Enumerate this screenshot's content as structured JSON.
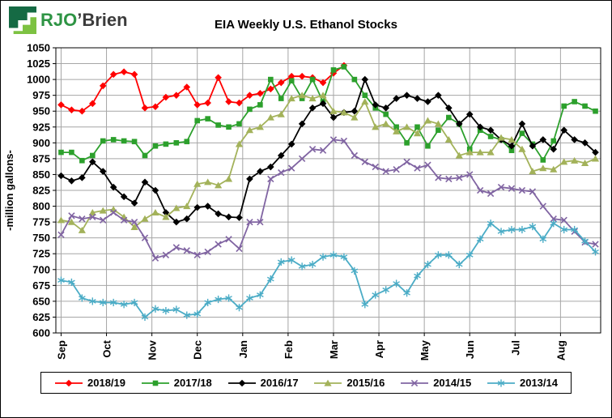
{
  "logo": {
    "text_green": "RJO",
    "text_dark": "’Brien"
  },
  "colors": {
    "logo_green": "#2E9444",
    "logo_dark": "#3B3B3B",
    "logo_icon_dark": "#156A44",
    "logo_icon_light": "#7DC242",
    "grid": "#A6A6A6"
  },
  "chart_data": {
    "type": "line",
    "title": "EIA Weekly U.S. Ethanol Stocks",
    "ylabel": "-million gallons-",
    "ylim": [
      600,
      1050
    ],
    "ytick_step": 25,
    "grid": true,
    "legend_position": "bottom",
    "x_tick_labels": [
      "Sep",
      "Oct",
      "Nov",
      "Dec",
      "Jan",
      "Feb",
      "Mar",
      "Apr",
      "May",
      "Jun",
      "Jul",
      "Aug"
    ],
    "weeks_per_year": 52,
    "series": [
      {
        "name": "2018/19",
        "color": "#FF0000",
        "marker": "diamond",
        "values": [
          960,
          952,
          950,
          962,
          990,
          1008,
          1012,
          1008,
          955,
          957,
          972,
          975,
          988,
          960,
          963,
          1003,
          965,
          963,
          975,
          978,
          985,
          995,
          1005,
          1005,
          1003,
          995,
          1010,
          1022
        ]
      },
      {
        "name": "2017/18",
        "color": "#2CA02C",
        "marker": "square",
        "values": [
          885,
          885,
          872,
          880,
          903,
          905,
          903,
          902,
          880,
          895,
          898,
          900,
          902,
          935,
          938,
          928,
          925,
          930,
          953,
          960,
          1000,
          970,
          998,
          970,
          1000,
          965,
          1015,
          1020,
          1000,
          975,
          955,
          945,
          925,
          900,
          925,
          895,
          920,
          940,
          930,
          890,
          920,
          910,
          905,
          888,
          915,
          898,
          873,
          903,
          958,
          965,
          958,
          950
        ]
      },
      {
        "name": "2016/17",
        "color": "#000000",
        "marker": "diamond",
        "values": [
          848,
          840,
          845,
          870,
          855,
          830,
          815,
          805,
          838,
          825,
          790,
          775,
          780,
          798,
          800,
          788,
          783,
          782,
          843,
          855,
          862,
          880,
          898,
          930,
          955,
          962,
          940,
          948,
          950,
          1000,
          960,
          955,
          970,
          975,
          970,
          965,
          975,
          955,
          930,
          945,
          925,
          920,
          905,
          895,
          930,
          895,
          905,
          890,
          920,
          905,
          900,
          885
        ]
      },
      {
        "name": "2015/16",
        "color": "#A3B25A",
        "marker": "triangle",
        "values": [
          778,
          775,
          762,
          790,
          793,
          795,
          783,
          767,
          780,
          790,
          783,
          797,
          800,
          835,
          838,
          833,
          843,
          898,
          920,
          925,
          940,
          945,
          970,
          975,
          970,
          975,
          950,
          948,
          940,
          965,
          925,
          930,
          918,
          925,
          915,
          935,
          930,
          905,
          880,
          885,
          885,
          885,
          908,
          905,
          890,
          855,
          860,
          858,
          870,
          872,
          868,
          875
        ]
      },
      {
        "name": "2014/15",
        "color": "#8064A2",
        "marker": "x",
        "values": [
          755,
          785,
          780,
          783,
          778,
          790,
          778,
          775,
          750,
          718,
          723,
          735,
          730,
          723,
          728,
          740,
          748,
          733,
          775,
          775,
          843,
          853,
          860,
          875,
          890,
          888,
          905,
          903,
          880,
          870,
          862,
          855,
          858,
          870,
          860,
          865,
          845,
          843,
          845,
          850,
          825,
          820,
          830,
          828,
          825,
          823,
          800,
          780,
          778,
          760,
          743,
          740
        ]
      },
      {
        "name": "2013/14",
        "color": "#4BACC6",
        "marker": "asterisk",
        "values": [
          683,
          680,
          655,
          650,
          648,
          648,
          645,
          648,
          625,
          638,
          635,
          637,
          628,
          630,
          648,
          653,
          655,
          640,
          655,
          660,
          685,
          712,
          715,
          705,
          708,
          720,
          723,
          720,
          698,
          645,
          660,
          668,
          678,
          663,
          690,
          708,
          723,
          723,
          708,
          723,
          748,
          773,
          760,
          763,
          763,
          768,
          748,
          773,
          763,
          763,
          745,
          728
        ]
      }
    ]
  }
}
